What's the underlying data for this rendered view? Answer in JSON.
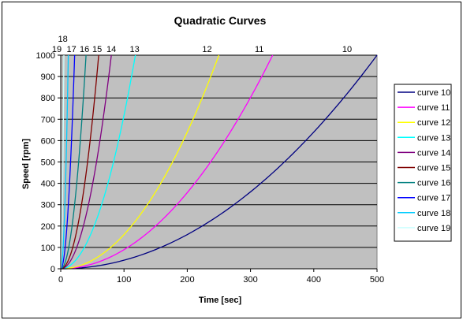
{
  "chart_data": {
    "type": "line",
    "title": "Quadratic Curves",
    "xlabel": "Time [sec]",
    "ylabel": "Speed [rpm]",
    "xlim": [
      0,
      500
    ],
    "ylim": [
      0,
      1000
    ],
    "x_ticks": [
      0,
      100,
      200,
      300,
      400,
      500
    ],
    "y_ticks": [
      0,
      100,
      200,
      300,
      400,
      500,
      600,
      700,
      800,
      900,
      1000
    ],
    "grid": "horizontal",
    "plot_background": "#C0C0C0",
    "legend_position": "right",
    "model": "speed = 1000 * (time / t_end)^2",
    "series": [
      {
        "name": "curve 10",
        "label": "10",
        "color": "#000080",
        "t_end": 500
      },
      {
        "name": "curve 11",
        "label": "11",
        "color": "#FF00FF",
        "t_end": 335
      },
      {
        "name": "curve 12",
        "label": "12",
        "color": "#FFFF00",
        "t_end": 250
      },
      {
        "name": "curve 13",
        "label": "13",
        "color": "#00FFFF",
        "t_end": 118
      },
      {
        "name": "curve 14",
        "label": "14",
        "color": "#800080",
        "t_end": 80
      },
      {
        "name": "curve 15",
        "label": "15",
        "color": "#800000",
        "t_end": 60
      },
      {
        "name": "curve 16",
        "label": "16",
        "color": "#008080",
        "t_end": 40
      },
      {
        "name": "curve 17",
        "label": "17",
        "color": "#0000FF",
        "t_end": 22
      },
      {
        "name": "curve 18",
        "label": "18",
        "color": "#00CCFF",
        "t_end": 12
      },
      {
        "name": "curve 19",
        "label": "19",
        "color": "#CCFFFF",
        "t_end": 5
      }
    ]
  }
}
